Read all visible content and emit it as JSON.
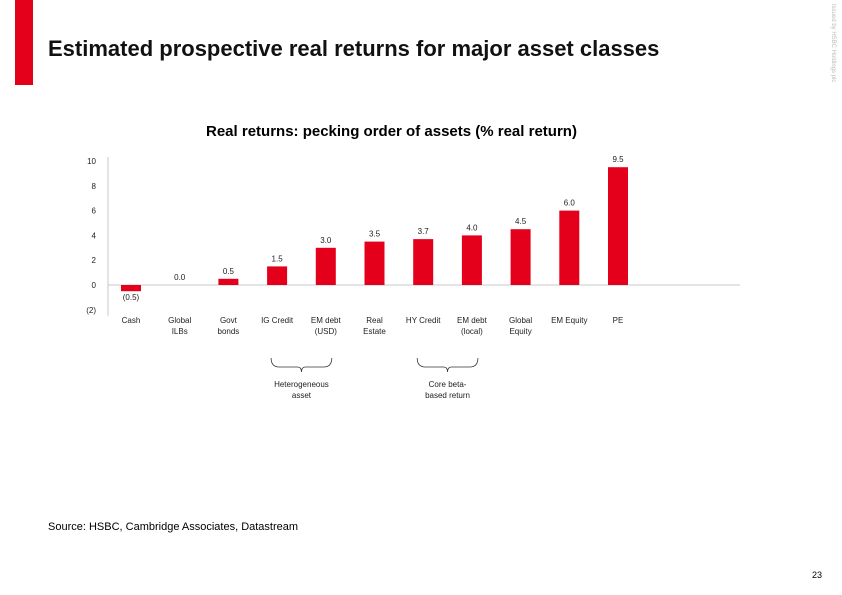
{
  "colors": {
    "accent": "#e4001b",
    "bar": "#e4001b"
  },
  "slide": {
    "title": "Estimated prospective real returns for major asset classes",
    "side_label": "Issued by HSBC Holdings plc",
    "source": "Source: HSBC, Cambridge Associates, Datastream",
    "page_number": "23"
  },
  "chart_data": {
    "type": "bar",
    "title": "Real returns: pecking order of assets (% real return)",
    "categories": [
      [
        "Cash"
      ],
      [
        "Global",
        "ILBs"
      ],
      [
        "Govt",
        "bonds"
      ],
      [
        "IG Credit"
      ],
      [
        "EM debt",
        "(USD)"
      ],
      [
        "Real",
        "Estate"
      ],
      [
        "HY Credit"
      ],
      [
        "EM debt",
        "(local)"
      ],
      [
        "Global",
        "Equity"
      ],
      [
        "EM Equity"
      ],
      [
        "PE"
      ]
    ],
    "values": [
      -0.5,
      0.0,
      0.5,
      1.5,
      3.0,
      3.5,
      3.7,
      4.0,
      4.5,
      6.0,
      9.5
    ],
    "value_labels": [
      "(0.5)",
      "0.0",
      "0.5",
      "1.5",
      "3.0",
      "3.5",
      "3.7",
      "4.0",
      "4.5",
      "6.0",
      "9.5"
    ],
    "y_ticks": [
      10,
      8,
      6,
      4,
      2,
      0,
      -2
    ],
    "y_tick_labels": [
      "10",
      "8",
      "6",
      "4",
      "2",
      "0",
      "(2)"
    ],
    "ylim": [
      -2,
      10
    ],
    "grid": false,
    "annotations": [
      {
        "text": [
          "Heterogeneous",
          "asset"
        ],
        "from_index": 3,
        "to_index": 4
      },
      {
        "text": [
          "Core beta-",
          "based return"
        ],
        "from_index": 6,
        "to_index": 7
      }
    ]
  }
}
